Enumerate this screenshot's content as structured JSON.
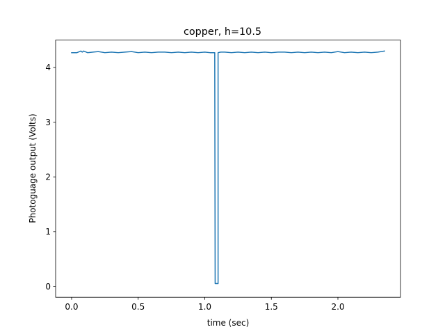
{
  "chart_data": {
    "type": "line",
    "title": "copper, h=10.5",
    "xlabel": "time (sec)",
    "ylabel": "Photoguage output (Volts)",
    "xlim": [
      -0.12,
      2.47
    ],
    "ylim": [
      -0.2,
      4.5
    ],
    "xticks": [
      0.0,
      0.5,
      1.0,
      1.5,
      2.0
    ],
    "xtick_labels": [
      "0.0",
      "0.5",
      "1.0",
      "1.5",
      "2.0"
    ],
    "yticks": [
      0,
      1,
      2,
      3,
      4
    ],
    "ytick_labels": [
      "0",
      "1",
      "2",
      "3",
      "4"
    ],
    "grid": false,
    "series": [
      {
        "color": "#1f77b4",
        "x": [
          0.0,
          0.04,
          0.07,
          0.08,
          0.09,
          0.12,
          0.16,
          0.2,
          0.25,
          0.3,
          0.35,
          0.4,
          0.45,
          0.5,
          0.55,
          0.6,
          0.65,
          0.7,
          0.75,
          0.8,
          0.85,
          0.9,
          0.95,
          1.0,
          1.04,
          1.075,
          1.078,
          1.08,
          1.1,
          1.1,
          1.12,
          1.15,
          1.2,
          1.25,
          1.3,
          1.35,
          1.4,
          1.45,
          1.5,
          1.55,
          1.6,
          1.65,
          1.7,
          1.75,
          1.8,
          1.85,
          1.9,
          1.95,
          2.0,
          2.05,
          2.1,
          2.15,
          2.2,
          2.25,
          2.3,
          2.35
        ],
        "y": [
          4.27,
          4.27,
          4.3,
          4.28,
          4.3,
          4.27,
          4.28,
          4.29,
          4.27,
          4.28,
          4.27,
          4.28,
          4.29,
          4.27,
          4.28,
          4.27,
          4.28,
          4.28,
          4.27,
          4.28,
          4.27,
          4.28,
          4.27,
          4.28,
          4.27,
          4.27,
          0.05,
          0.05,
          0.05,
          4.27,
          4.28,
          4.28,
          4.27,
          4.28,
          4.27,
          4.28,
          4.27,
          4.28,
          4.27,
          4.28,
          4.28,
          4.27,
          4.28,
          4.27,
          4.28,
          4.27,
          4.28,
          4.27,
          4.29,
          4.27,
          4.28,
          4.27,
          4.28,
          4.27,
          4.28,
          4.3
        ]
      }
    ]
  }
}
